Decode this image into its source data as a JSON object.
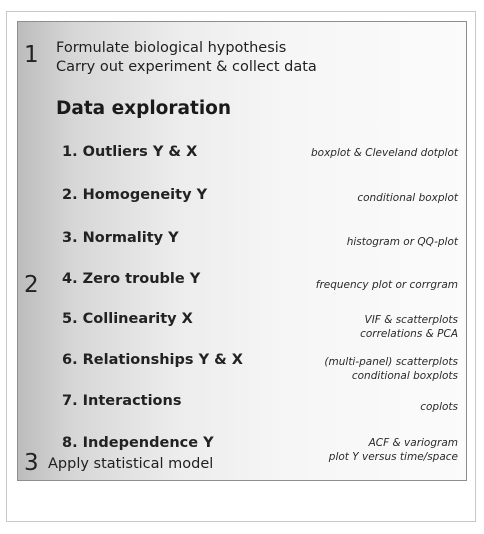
{
  "steps_outer": [
    {
      "number": "1",
      "lines": [
        "Formulate biological hypothesis",
        "Carry out experiment & collect data"
      ]
    },
    {
      "number": "2"
    },
    {
      "number": "3",
      "lines": [
        "Apply statistical model"
      ]
    }
  ],
  "exploration": {
    "heading": "Data exploration",
    "items": [
      {
        "label": "1. Outliers Y & X",
        "tool": [
          "boxplot & Cleveland dotplot"
        ]
      },
      {
        "label": "2. Homogeneity Y",
        "tool": [
          "conditional boxplot"
        ]
      },
      {
        "label": "3. Normality Y",
        "tool": [
          "histogram or QQ-plot"
        ]
      },
      {
        "label": "4. Zero trouble Y",
        "tool": [
          "frequency plot or corrgram"
        ]
      },
      {
        "label": "5. Collinearity X",
        "tool": [
          "VIF & scatterplots",
          "correlations & PCA"
        ]
      },
      {
        "label": "6. Relationships Y & X",
        "tool": [
          "(multi-panel) scatterplots",
          "conditional boxplots"
        ]
      },
      {
        "label": "7. Interactions",
        "tool": [
          "coplots"
        ]
      },
      {
        "label": "8. Independence Y",
        "tool": [
          "ACF & variogram",
          "plot Y versus time/space"
        ]
      }
    ]
  }
}
